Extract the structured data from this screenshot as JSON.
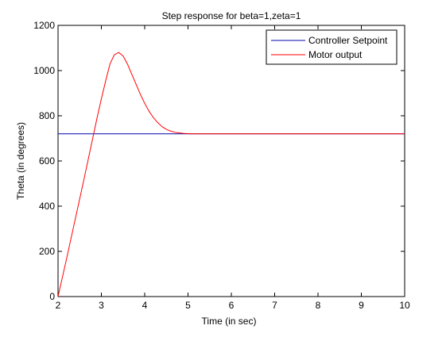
{
  "chart_data": {
    "type": "line",
    "title": "Step response for beta=1,zeta=1",
    "xlabel": "Time (in sec)",
    "ylabel": "Theta (in degrees)",
    "xlim": [
      2,
      10
    ],
    "ylim": [
      0,
      1200
    ],
    "xticks": [
      2,
      3,
      4,
      5,
      6,
      7,
      8,
      9,
      10
    ],
    "yticks": [
      0,
      200,
      400,
      600,
      800,
      1000,
      1200
    ],
    "grid": false,
    "legend_position": "top-right",
    "series": [
      {
        "name": "Controller Setpoint",
        "color": "#0000aa",
        "x": [
          2,
          10
        ],
        "y": [
          720,
          720
        ]
      },
      {
        "name": "Motor output",
        "color": "#ff0000",
        "x": [
          2.0,
          2.2,
          2.4,
          2.6,
          2.8,
          2.9,
          3.0,
          3.1,
          3.2,
          3.3,
          3.4,
          3.5,
          3.6,
          3.7,
          3.8,
          3.9,
          4.0,
          4.1,
          4.2,
          4.3,
          4.4,
          4.5,
          4.6,
          4.7,
          4.8,
          4.9,
          5.0,
          5.1,
          5.5,
          6.0,
          7.0,
          8.0,
          9.0,
          10.0
        ],
        "y": [
          0,
          170,
          345,
          520,
          700,
          790,
          875,
          955,
          1030,
          1070,
          1080,
          1065,
          1030,
          985,
          940,
          895,
          855,
          820,
          792,
          770,
          752,
          740,
          732,
          727,
          724,
          722,
          721,
          720,
          720,
          720,
          720,
          720,
          720,
          720
        ]
      }
    ]
  }
}
